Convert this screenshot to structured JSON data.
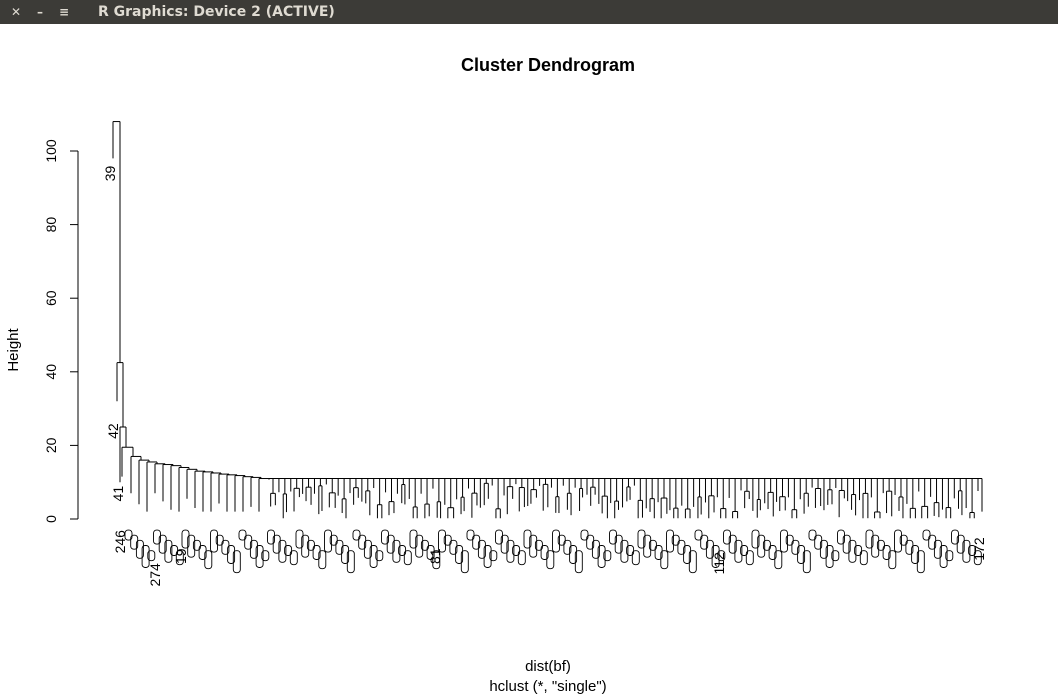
{
  "window": {
    "title": "R Graphics: Device 2 (ACTIVE)",
    "close_label": "✕",
    "minimize_label": "–",
    "menu_label": "≡"
  },
  "chart_data": {
    "type": "dendrogram",
    "title": "Cluster Dendrogram",
    "ylabel": "Height",
    "xlabel": "dist(bf)",
    "sublabel": "hclust (*, \"single\")",
    "ylim": [
      0,
      110
    ],
    "yticks": [
      0,
      20,
      40,
      60,
      80,
      100
    ],
    "merge_heights": {
      "outlier_39": 108,
      "outlier_42": 42.5,
      "outlier_41": 25,
      "next_merges": [
        19.5,
        17,
        16,
        15.5,
        15,
        14.8,
        14.5,
        14,
        13.5,
        13,
        12.8,
        12.5,
        12.2,
        12,
        11.8,
        11.5,
        11.3,
        11
      ]
    },
    "visible_leaf_labels": [
      "39",
      "42",
      "41",
      "246",
      "274",
      "19",
      "81",
      "112",
      "172"
    ]
  }
}
